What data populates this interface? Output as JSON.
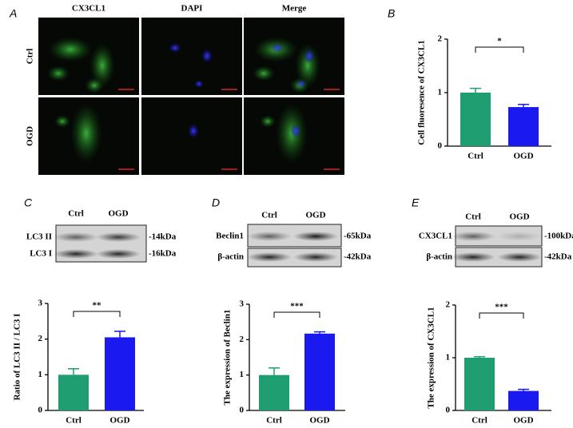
{
  "figure": {
    "panel_letters": [
      "A",
      "B",
      "C",
      "D",
      "E"
    ],
    "microscopy": {
      "columns": [
        "CX3CL1",
        "DAPI",
        "Merge"
      ],
      "column_colors": [
        "#1faa1f",
        "#1a1af0",
        "#000000"
      ],
      "rows": [
        "Ctrl",
        "OGD"
      ]
    },
    "blots": [
      {
        "columns": [
          "Ctrl",
          "OGD"
        ],
        "bands": [
          {
            "name": "LC3 II",
            "size": "-14kDa"
          },
          {
            "name": "LC3 I",
            "size": "-16kDa"
          }
        ]
      },
      {
        "columns": [
          "Ctrl",
          "OGD"
        ],
        "bands": [
          {
            "name": "Beclin1",
            "size": "-65kDa"
          },
          {
            "name": "β-actin",
            "size": "-42kDa"
          }
        ]
      },
      {
        "columns": [
          "Ctrl",
          "OGD"
        ],
        "bands": [
          {
            "name": "CX3CL1",
            "size": "-100kDa"
          },
          {
            "name": "β-actin",
            "size": "-42kDa"
          }
        ]
      }
    ]
  },
  "chart_data": [
    {
      "type": "bar",
      "y_label": "Cell fluoresence of CX3CL1",
      "categories": [
        "Ctrl",
        "OGD"
      ],
      "values": [
        1.0,
        0.73
      ],
      "errors": [
        0.08,
        0.05
      ],
      "colors": [
        "#1f9e72",
        "#1a1af0"
      ],
      "ylim": [
        0,
        2
      ],
      "yticks": [
        0,
        1,
        2
      ],
      "significance": "*"
    },
    {
      "type": "bar",
      "y_label": "Ratio of LC3 II / LC3 I",
      "categories": [
        "Ctrl",
        "OGD"
      ],
      "values": [
        1.0,
        2.05
      ],
      "errors": [
        0.17,
        0.17
      ],
      "colors": [
        "#1f9e72",
        "#1a1af0"
      ],
      "ylim": [
        0,
        3
      ],
      "yticks": [
        0,
        1,
        2,
        3
      ],
      "significance": "**"
    },
    {
      "type": "bar",
      "y_label": "The expression of Beclin1",
      "categories": [
        "Ctrl",
        "OGD"
      ],
      "values": [
        1.0,
        2.17
      ],
      "errors": [
        0.2,
        0.05
      ],
      "colors": [
        "#1f9e72",
        "#1a1af0"
      ],
      "ylim": [
        0,
        3
      ],
      "yticks": [
        0,
        1,
        2,
        3
      ],
      "significance": "***"
    },
    {
      "type": "bar",
      "y_label": "The expression of CX3CL1",
      "categories": [
        "Ctrl",
        "OGD"
      ],
      "values": [
        1.0,
        0.37
      ],
      "errors": [
        0.02,
        0.03
      ],
      "colors": [
        "#1f9e72",
        "#1a1af0"
      ],
      "ylim": [
        0,
        2
      ],
      "yticks": [
        0,
        1,
        2
      ],
      "significance": "***"
    }
  ]
}
